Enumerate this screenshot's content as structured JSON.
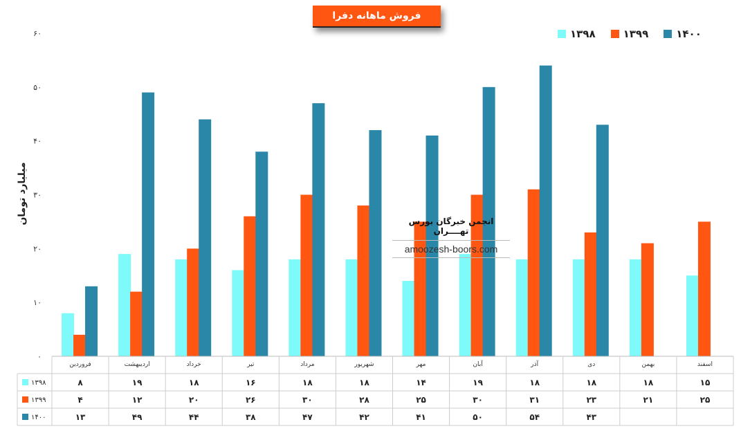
{
  "chart_data": {
    "type": "bar",
    "title": "فروش ماهانه دفرا",
    "ylabel": "میلیارد تومان",
    "ylim": [
      0,
      60
    ],
    "yticks": [
      "۰",
      "۱۰",
      "۲۰",
      "۳۰",
      "۴۰",
      "۵۰",
      "۶۰"
    ],
    "categories": [
      "فروردین",
      "اردیبهشت",
      "خرداد",
      "تیر",
      "مرداد",
      "شهریور",
      "مهر",
      "آبان",
      "آذر",
      "دی",
      "بهمن",
      "اسفند"
    ],
    "series": [
      {
        "name": "۱۳۹۸",
        "color": "#7FFAFA",
        "values": [
          8,
          19,
          18,
          16,
          18,
          18,
          14,
          19,
          18,
          18,
          18,
          15
        ],
        "labels": [
          "۸",
          "۱۹",
          "۱۸",
          "۱۶",
          "۱۸",
          "۱۸",
          "۱۴",
          "۱۹",
          "۱۸",
          "۱۸",
          "۱۸",
          "۱۵"
        ]
      },
      {
        "name": "۱۳۹۹",
        "color": "#FF5612",
        "values": [
          4,
          12,
          20,
          26,
          30,
          28,
          25,
          30,
          31,
          23,
          21,
          25
        ],
        "labels": [
          "۴",
          "۱۲",
          "۲۰",
          "۲۶",
          "۳۰",
          "۲۸",
          "۲۵",
          "۳۰",
          "۳۱",
          "۲۳",
          "۲۱",
          "۲۵"
        ]
      },
      {
        "name": "۱۴۰۰",
        "color": "#2A87A8",
        "values": [
          13,
          49,
          44,
          38,
          47,
          42,
          41,
          50,
          54,
          43,
          null,
          null
        ],
        "labels": [
          "۱۳",
          "۴۹",
          "۴۴",
          "۳۸",
          "۴۷",
          "۴۲",
          "۴۱",
          "۵۰",
          "۵۴",
          "۴۳",
          "",
          ""
        ]
      }
    ],
    "legend_position": "top-right",
    "grid": false,
    "data_table": true
  },
  "watermark": {
    "line1": "انجمن خبرگان بورس تهــــران",
    "line2": "amoozesh-boors.com"
  }
}
